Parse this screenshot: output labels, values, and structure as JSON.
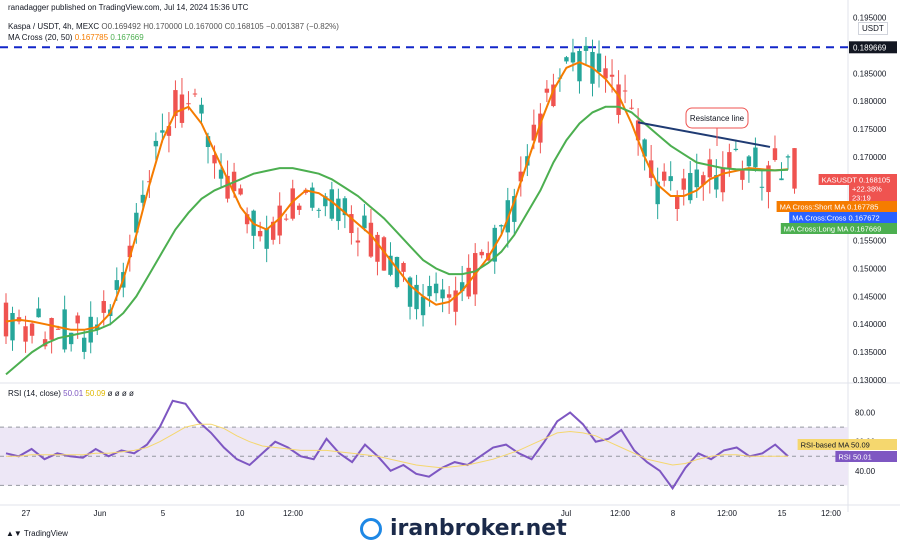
{
  "header": {
    "published": "ranadagger published on TradingView.com, Jul 14, 2024 15:36 UTC",
    "symbol_line": "Kaspa / USDT, 4h, MEXC",
    "ohlc": "O0.169492 H0.170000 L0.167000 C0.168105 −0.001387 (−0.82%)",
    "ma_cross_label": "MA Cross (20, 50)",
    "ma_short_value": "0.167785",
    "ma_long_value": "0.167669",
    "currency": "USDT"
  },
  "rsi_header": {
    "label": "RSI (14, close)",
    "rsi": "50.01",
    "rsi_ma": "50.09",
    "extra": "ø ø ø ø"
  },
  "footer": {
    "tradingview": "TradingView",
    "watermark": "iranbroker.net"
  },
  "colors": {
    "candle_up": "#26a69a",
    "candle_down": "#ef5350",
    "ma_short": "#f57c00",
    "ma_long": "#4caf50",
    "resistance": "#1f3b73",
    "level_line": "#1226c9",
    "rsi": "#7e57c2",
    "rsi_ma": "#f5d76e",
    "axis_label_bg": "#131722"
  },
  "chart_data": [
    {
      "type": "candlestick",
      "title": "Kaspa / USDT, 4h, MEXC",
      "ylim": [
        0.13,
        0.196
      ],
      "y_ticks": [
        "0.195000",
        "0.185000",
        "0.180000",
        "0.175000",
        "0.170000",
        "0.155000",
        "0.150000",
        "0.145000",
        "0.140000",
        "0.135000",
        "0.130000"
      ],
      "x_ticks": [
        "27",
        "Jun",
        "5",
        "10",
        "12:00",
        "Jul",
        "12:00",
        "8",
        "12:00",
        "15",
        "12:00"
      ],
      "levels": [
        {
          "label": "0.189669",
          "value": 0.189669,
          "style": "dashed"
        }
      ],
      "price_labels": [
        {
          "label": "KASUSDT",
          "value": "0.168105"
        },
        {
          "label": "",
          "value": "+22.38%"
        },
        {
          "label": "",
          "value": "23:19"
        },
        {
          "label": "MA Cross:Short MA",
          "value": "0.167785"
        },
        {
          "label": "MA Cross:Cross",
          "value": "0.167672"
        },
        {
          "label": "MA Cross:Long MA",
          "value": "0.167669"
        }
      ],
      "annotations": [
        {
          "text": "Resistance line",
          "from": [
            0.1762
          ],
          "to": [
            0.1718
          ]
        }
      ],
      "series": [
        {
          "name": "MA Cross:Short MA",
          "values": [
            0.1405,
            0.1408,
            0.1405,
            0.14,
            0.1395,
            0.139,
            0.139,
            0.1395,
            0.142,
            0.148,
            0.156,
            0.165,
            0.173,
            0.178,
            0.179,
            0.176,
            0.171,
            0.166,
            0.161,
            0.158,
            0.157,
            0.159,
            0.162,
            0.164,
            0.1635,
            0.162,
            0.16,
            0.158,
            0.156,
            0.153,
            0.15,
            0.147,
            0.145,
            0.1435,
            0.144,
            0.146,
            0.149,
            0.152,
            0.156,
            0.162,
            0.169,
            0.176,
            0.182,
            0.186,
            0.187,
            0.186,
            0.184,
            0.181,
            0.176,
            0.17,
            0.165,
            0.163,
            0.163,
            0.164,
            0.166,
            0.167,
            0.1675,
            0.168,
            0.1678,
            0.1676,
            0.1678
          ]
        },
        {
          "name": "MA Cross:Long MA",
          "values": [
            0.131,
            0.133,
            0.135,
            0.1365,
            0.1375,
            0.138,
            0.1385,
            0.139,
            0.14,
            0.142,
            0.145,
            0.149,
            0.153,
            0.157,
            0.16,
            0.1625,
            0.164,
            0.165,
            0.166,
            0.167,
            0.1675,
            0.168,
            0.168,
            0.1675,
            0.167,
            0.166,
            0.1645,
            0.163,
            0.161,
            0.159,
            0.1565,
            0.154,
            0.1515,
            0.15,
            0.149,
            0.149,
            0.1495,
            0.151,
            0.153,
            0.156,
            0.16,
            0.164,
            0.169,
            0.173,
            0.176,
            0.178,
            0.179,
            0.179,
            0.178,
            0.176,
            0.174,
            0.172,
            0.1705,
            0.169,
            0.1685,
            0.168,
            0.1678,
            0.1677,
            0.1676,
            0.1676,
            0.1677
          ]
        }
      ]
    },
    {
      "type": "line",
      "title": "RSI (14, close)",
      "ylim": [
        20,
        92
      ],
      "y_ticks": [
        "80.00",
        "60.00",
        "40.00"
      ],
      "bands": [
        30,
        50,
        70
      ],
      "price_labels": [
        {
          "label": "RSI-based MA",
          "value": "50.09"
        },
        {
          "label": "RSI",
          "value": "50.01"
        }
      ],
      "series": [
        {
          "name": "RSI",
          "values": [
            52,
            50,
            55,
            48,
            52,
            50,
            49,
            55,
            50,
            54,
            52,
            58,
            70,
            88,
            86,
            74,
            66,
            56,
            48,
            44,
            52,
            60,
            56,
            50,
            48,
            62,
            52,
            46,
            58,
            50,
            40,
            44,
            38,
            36,
            42,
            46,
            44,
            50,
            56,
            58,
            52,
            48,
            60,
            74,
            80,
            72,
            60,
            62,
            68,
            54,
            46,
            40,
            28,
            42,
            52,
            48,
            54,
            56,
            50,
            52,
            58,
            50
          ]
        },
        {
          "name": "RSI-based MA",
          "values": [
            50,
            50,
            51,
            51,
            51,
            51,
            51,
            52,
            52,
            53,
            54,
            56,
            60,
            65,
            70,
            72,
            72,
            69,
            64,
            60,
            57,
            56,
            55,
            54,
            54,
            54,
            53,
            52,
            51,
            50,
            48,
            46,
            44,
            43,
            42,
            43,
            44,
            46,
            48,
            51,
            54,
            58,
            62,
            66,
            67,
            66,
            64,
            60,
            56,
            52,
            48,
            46,
            44,
            45,
            48,
            50,
            51,
            51,
            50,
            50,
            50,
            50
          ]
        }
      ]
    }
  ]
}
